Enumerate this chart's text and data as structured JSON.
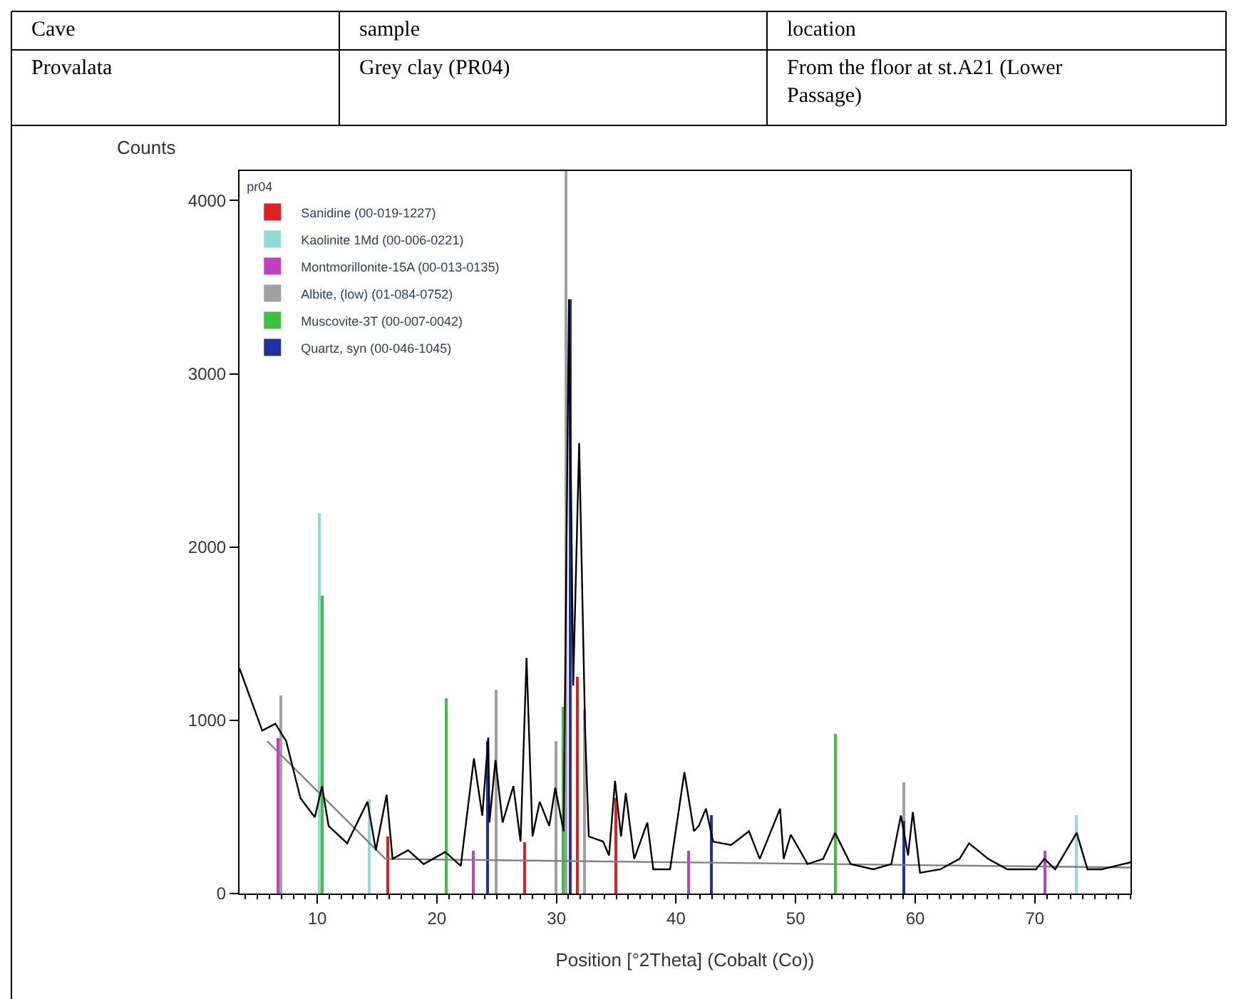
{
  "chart_data": {
    "type": "line",
    "xlabel": "Position [°2Theta] (Cobalt (Co))",
    "ylabel": "Counts",
    "legend_title": "pr04",
    "annotations": [
      "Cave",
      "sample",
      "location",
      "Provalata",
      "Grey clay (PR04)",
      "From the floor at st.A21 (Lower Passage)"
    ],
    "xlim": [
      3.5,
      78
    ],
    "xticks": [
      10,
      20,
      30,
      40,
      50,
      60,
      70
    ],
    "ylim": [
      0,
      4170
    ],
    "yticks": [
      0,
      1000,
      2000,
      3000,
      4000
    ],
    "legend": "top left",
    "series": [
      {
        "type": "bar",
        "name": "Sanidine (00-019-1227)",
        "color": "#e02020",
        "x": [
          15.9,
          27.4,
          31.8,
          35.0
        ],
        "values": [
          330,
          300,
          1250,
          550
        ]
      },
      {
        "type": "bar",
        "name": "Kaolinite 1Md (00-006-0221)",
        "color": "#90dcd4",
        "x": [
          10.15,
          14.4,
          73.5
        ],
        "values": [
          2200,
          540,
          450
        ]
      },
      {
        "type": "bar",
        "name": "Montmorillonite-15A (00-013-0135)",
        "color": "#c040c0",
        "x": [
          6.75,
          23.0,
          41.0,
          70.8
        ],
        "values": [
          900,
          250,
          250,
          250
        ]
      },
      {
        "type": "bar",
        "name": "Albite, (low) (01-084-0752)",
        "color": "#a0a0a0",
        "x": [
          7.0,
          25.0,
          30.0,
          30.85,
          32.3,
          59.0
        ],
        "values": [
          1140,
          1180,
          880,
          4170,
          1060,
          640
        ]
      },
      {
        "type": "bar",
        "name": "Muscovite-3T (00-007-0042)",
        "color": "#40c040",
        "x": [
          10.4,
          20.8,
          30.6,
          53.3
        ],
        "values": [
          1720,
          1130,
          1080,
          920
        ]
      },
      {
        "type": "bar",
        "name": "Quartz, syn (00-046-1045)",
        "color": "#2030a0",
        "x": [
          24.2,
          31.1,
          43.0,
          59.1
        ],
        "values": [
          880,
          3430,
          450,
          420
        ]
      },
      {
        "color": "#808080",
        "x": [
          5.8,
          15.7,
          78
        ],
        "values": [
          880,
          200,
          150
        ]
      },
      {
        "color": "#000000",
        "x": [
          3.5,
          5.4,
          6.5,
          7.4,
          8.6,
          9.8,
          10.4,
          10.95,
          12.5,
          14.2,
          14.9,
          15.8,
          16.3,
          17.6,
          18.9,
          20.7,
          22.0,
          23.1,
          23.8,
          24.3,
          24.4,
          24.9,
          25.5,
          26.4,
          27.0,
          27.5,
          28.0,
          28.6,
          29.4,
          29.9,
          30.6,
          31.05,
          31.4,
          31.9,
          32.4,
          32.7,
          33.9,
          34.4,
          34.9,
          35.4,
          35.8,
          36.5,
          37.6,
          38.1,
          39.5,
          40.7,
          41.5,
          41.9,
          42.5,
          43.1,
          44.6,
          46.1,
          47.0,
          48.7,
          49.0,
          49.6,
          51.0,
          52.3,
          53.3,
          54.6,
          56.5,
          58.0,
          58.8,
          59.4,
          59.8,
          60.4,
          62.1,
          63.7,
          64.5,
          66.1,
          67.7,
          70.1,
          70.8,
          71.7,
          73.5,
          74.4,
          75.6,
          77.4,
          78
        ],
        "values": [
          1300,
          940,
          980,
          880,
          550,
          440,
          620,
          390,
          290,
          530,
          250,
          570,
          200,
          250,
          170,
          240,
          160,
          780,
          450,
          900,
          410,
          770,
          410,
          620,
          300,
          1360,
          330,
          530,
          390,
          610,
          360,
          3430,
          1200,
          2600,
          940,
          330,
          300,
          220,
          650,
          330,
          580,
          200,
          410,
          140,
          140,
          700,
          360,
          390,
          490,
          300,
          280,
          360,
          200,
          490,
          200,
          340,
          170,
          200,
          350,
          170,
          140,
          170,
          450,
          220,
          470,
          120,
          140,
          200,
          290,
          200,
          140,
          140,
          200,
          140,
          350,
          140,
          140,
          170,
          180
        ]
      }
    ]
  }
}
